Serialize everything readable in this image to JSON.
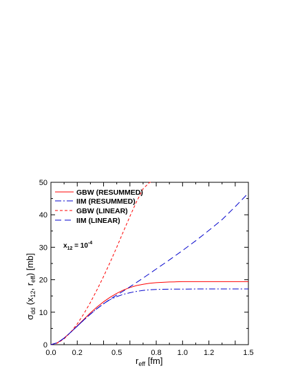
{
  "chart_data": {
    "type": "line",
    "xlabel": "r",
    "xlabel_sub": "eff",
    "xlabel_unit": " [fm]",
    "ylabel": {
      "main": "σ",
      "sub1": "dd",
      "mid1": " (x",
      "sub2": "12",
      "mid2": ", r",
      "sub3": "eff",
      "end": ")  [mb]"
    },
    "xlim": [
      0,
      1.5
    ],
    "ylim": [
      0,
      50
    ],
    "xticks": [
      0.0,
      0.2,
      0.4,
      0.6,
      0.8,
      1.0,
      1.2,
      1.4
    ],
    "xtick_labels": [
      "0.0",
      "0.2",
      "0.5",
      "0.8",
      "1.0",
      "1.2",
      "1.5"
    ],
    "xtick_label_values": [
      0.0,
      0.2,
      0.5,
      0.8,
      1.0,
      1.2,
      1.5
    ],
    "yticks": [
      0,
      10,
      20,
      30,
      40,
      50
    ],
    "ytick_labels": [
      "0",
      "10",
      "20",
      "30",
      "40",
      "50"
    ],
    "legend_position": "top-left",
    "annotation": {
      "base": "x",
      "sub": "12",
      "eq": " = 10",
      "sup": "-4",
      "x": 0.08,
      "y": 30
    },
    "series": [
      {
        "name": "GBW  (RESUMMED)",
        "color": "#ff0000",
        "dash": "",
        "x": [
          0,
          0.05,
          0.1,
          0.15,
          0.2,
          0.25,
          0.3,
          0.35,
          0.4,
          0.45,
          0.5,
          0.55,
          0.6,
          0.65,
          0.7,
          0.75,
          0.8,
          0.85,
          0.9,
          0.95,
          1.0,
          1.1,
          1.2,
          1.3,
          1.4,
          1.5
        ],
        "y": [
          0,
          0.6,
          2.0,
          3.8,
          5.8,
          7.8,
          9.8,
          11.6,
          13.2,
          14.6,
          15.8,
          16.8,
          17.6,
          18.2,
          18.6,
          18.9,
          19.1,
          19.2,
          19.3,
          19.35,
          19.4,
          19.4,
          19.4,
          19.4,
          19.4,
          19.4
        ]
      },
      {
        "name": "IIM (RESUMMED)",
        "color": "#0000cc",
        "dash": "9,3,2,3",
        "x": [
          0,
          0.05,
          0.1,
          0.15,
          0.2,
          0.25,
          0.3,
          0.35,
          0.4,
          0.45,
          0.5,
          0.55,
          0.6,
          0.65,
          0.7,
          0.75,
          0.8,
          0.9,
          1.0,
          1.1,
          1.2,
          1.3,
          1.4,
          1.5
        ],
        "y": [
          0,
          0.6,
          2.0,
          3.8,
          5.7,
          7.6,
          9.4,
          11.1,
          12.6,
          13.9,
          14.8,
          15.5,
          16.0,
          16.4,
          16.7,
          16.9,
          17.0,
          17.1,
          17.1,
          17.15,
          17.15,
          17.15,
          17.15,
          17.15
        ]
      },
      {
        "name": "GBW (LINEAR)",
        "color": "#ff0000",
        "dash": "4,3",
        "x": [
          0,
          0.05,
          0.1,
          0.15,
          0.2,
          0.25,
          0.3,
          0.35,
          0.4,
          0.45,
          0.5,
          0.55,
          0.6,
          0.65,
          0.7,
          0.75,
          0.775
        ],
        "y": [
          0,
          0.5,
          1.8,
          3.8,
          6.4,
          9.5,
          13.0,
          16.9,
          21.0,
          25.4,
          30.0,
          34.8,
          39.5,
          44.0,
          48.0,
          50.0,
          50.0
        ]
      },
      {
        "name": "IIM (LINEAR)",
        "color": "#0000cc",
        "dash": "9,5",
        "x": [
          0,
          0.05,
          0.1,
          0.15,
          0.2,
          0.25,
          0.3,
          0.35,
          0.4,
          0.45,
          0.5,
          0.55,
          0.6,
          0.7,
          0.8,
          0.9,
          1.0,
          1.1,
          1.2,
          1.3,
          1.4,
          1.5
        ],
        "y": [
          0,
          0.6,
          2.0,
          3.8,
          5.7,
          7.6,
          9.4,
          11.1,
          12.6,
          14.0,
          15.3,
          16.5,
          17.8,
          20.5,
          23.3,
          26.1,
          29.0,
          32.0,
          35.2,
          38.5,
          42.5,
          46.7
        ]
      }
    ]
  }
}
